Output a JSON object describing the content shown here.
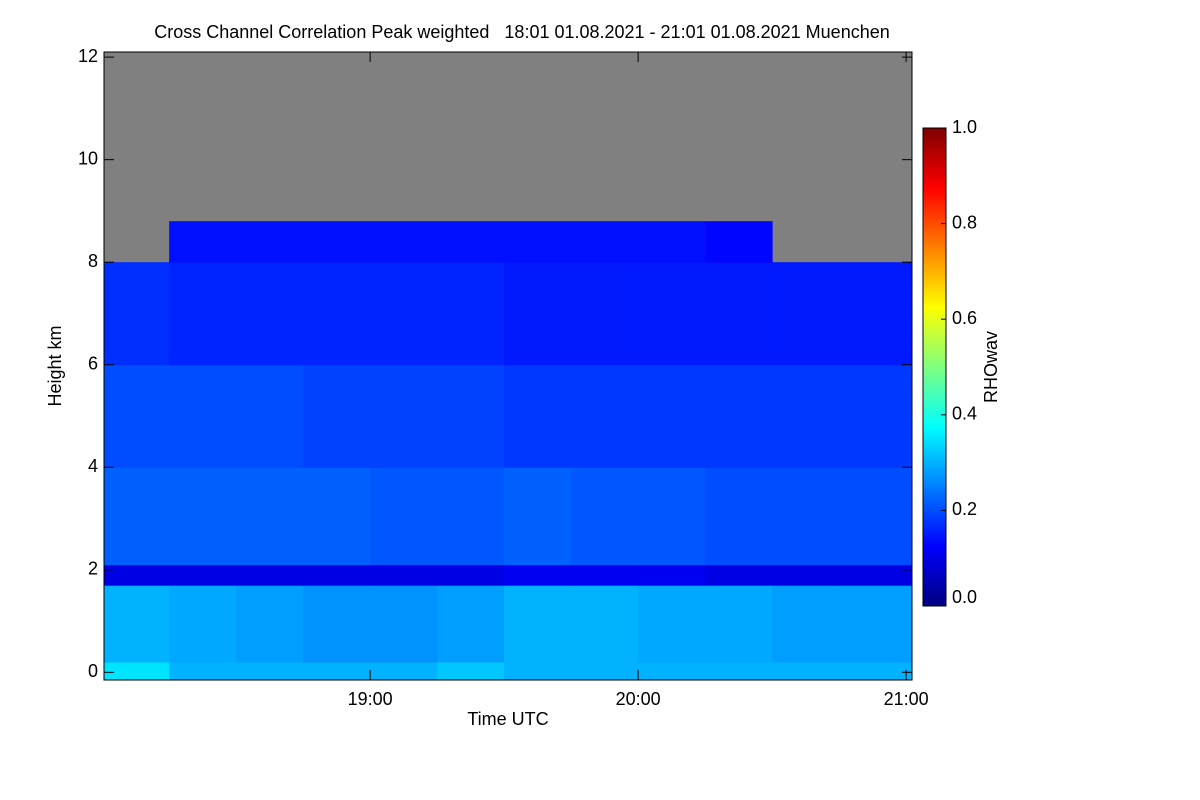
{
  "chart_data": {
    "type": "heatmap",
    "title": "Cross Channel Correlation Peak weighted   18:01 01.08.2021 - 21:01 01.08.2021 Muenchen",
    "xlabel": "Time UTC",
    "ylabel": "Height km",
    "xlim": [
      18.007,
      21.022
    ],
    "ylim": [
      -0.15,
      12.1
    ],
    "xticks": [
      {
        "value": 19,
        "label": "19:00"
      },
      {
        "value": 20,
        "label": "20:00"
      },
      {
        "value": 21,
        "label": "21:00"
      }
    ],
    "yticks": [
      0,
      2,
      4,
      6,
      8,
      10,
      12
    ],
    "x_edges": [
      18.007,
      18.25,
      18.5,
      18.75,
      19.0,
      19.25,
      19.5,
      19.75,
      20.0,
      20.25,
      20.5,
      20.75,
      21.022
    ],
    "y_edges": [
      -0.15,
      0.2,
      1.7,
      2.1,
      4,
      6,
      8,
      8.8,
      12.1
    ],
    "z": [
      [
        0.35,
        0.3,
        0.3,
        0.3,
        0.3,
        0.32,
        0.3,
        0.3,
        0.3,
        0.3,
        0.3,
        0.3
      ],
      [
        0.3,
        0.29,
        0.28,
        0.27,
        0.27,
        0.28,
        0.3,
        0.3,
        0.29,
        0.29,
        0.28,
        0.28
      ],
      [
        0.1,
        0.1,
        0.1,
        0.1,
        0.1,
        0.1,
        0.11,
        0.11,
        0.11,
        0.1,
        0.1,
        0.1
      ],
      [
        0.22,
        0.22,
        0.22,
        0.22,
        0.21,
        0.21,
        0.22,
        0.21,
        0.21,
        0.2,
        0.2,
        0.2
      ],
      [
        0.2,
        0.2,
        0.2,
        0.19,
        0.19,
        0.19,
        0.18,
        0.18,
        0.18,
        0.18,
        0.18,
        0.18
      ],
      [
        0.17,
        0.16,
        0.16,
        0.16,
        0.16,
        0.16,
        0.15,
        0.15,
        0.15,
        0.15,
        0.15,
        0.15
      ],
      [
        null,
        0.14,
        0.14,
        0.14,
        0.14,
        0.14,
        0.14,
        0.14,
        0.14,
        0.13,
        null,
        null
      ],
      [
        null,
        null,
        null,
        null,
        null,
        null,
        null,
        null,
        null,
        null,
        null,
        null
      ]
    ],
    "null_color": "#808080",
    "colorscale": [
      "#00007f",
      "#0000ff",
      "#007fff",
      "#00ffff",
      "#7fff7f",
      "#ffff00",
      "#ff7f00",
      "#ff0000",
      "#7f0000"
    ],
    "colorbar": {
      "label": "RHOwav",
      "lim": [
        0,
        1
      ],
      "ticks": [
        {
          "value": 0,
          "label": "0.0"
        },
        {
          "value": 0.2,
          "label": "0.2"
        },
        {
          "value": 0.4,
          "label": "0.4"
        },
        {
          "value": 0.6,
          "label": "0.6"
        },
        {
          "value": 0.8,
          "label": "0.8"
        },
        {
          "value": 1,
          "label": "1.0"
        }
      ]
    }
  }
}
